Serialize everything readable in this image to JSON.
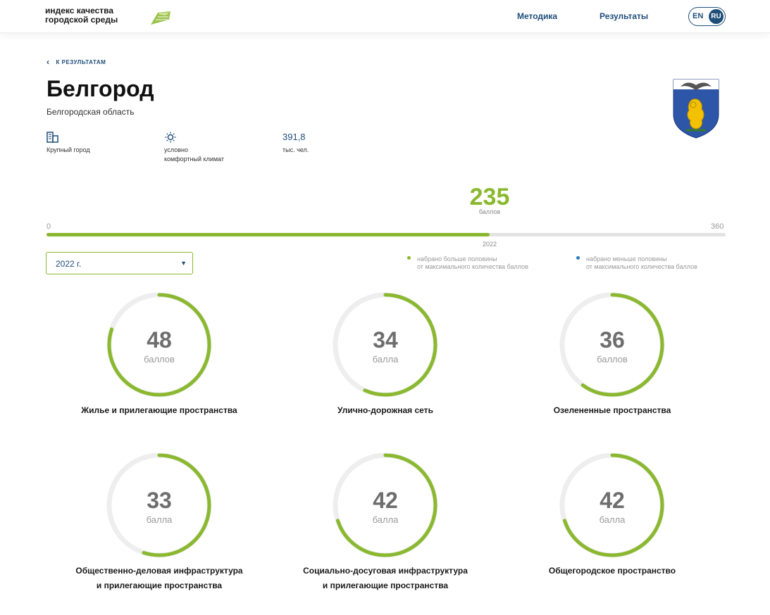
{
  "header": {
    "logo_line1": "индекс качества",
    "logo_line2": "городской среды",
    "nav": [
      "Методика",
      "Результаты"
    ],
    "lang_en": "EN",
    "lang_ru": "RU"
  },
  "back_link": "К РЕЗУЛЬТАТАМ",
  "city": {
    "name": "Белгород",
    "region": "Белгородская область",
    "type_label": "Крупный город",
    "climate_line1": "условно",
    "climate_line2": "комфортный климат",
    "population": "391,8",
    "population_unit": "тыс. чел."
  },
  "score": {
    "total": "235",
    "unit": "баллов",
    "min": "0",
    "max": "360",
    "total_value": 235,
    "max_value": 360,
    "year_marker": "2022"
  },
  "year_select": {
    "value": "2022 г."
  },
  "legend": {
    "above_line1": "набрано больше половины",
    "above_line2": "от максимального количества баллов",
    "below_line1": "набрано меньше половины",
    "below_line2": "от максимального количества баллов"
  },
  "colors": {
    "accent_green": "#8ab82e",
    "accent_blue": "#1f4e79",
    "legend_blue": "#2b7bb9"
  },
  "categories": [
    {
      "score": "48",
      "unit": "баллов",
      "title_line1": "Жилье и прилегающие пространства",
      "title_line2": "",
      "fraction": 0.8
    },
    {
      "score": "34",
      "unit": "балла",
      "title_line1": "Улично-дорожная сеть",
      "title_line2": "",
      "fraction": 0.567
    },
    {
      "score": "36",
      "unit": "баллов",
      "title_line1": "Озелененные пространства",
      "title_line2": "",
      "fraction": 0.6
    },
    {
      "score": "33",
      "unit": "балла",
      "title_line1": "Общественно-деловая инфраструктура",
      "title_line2": "и прилегающие пространства",
      "fraction": 0.55
    },
    {
      "score": "42",
      "unit": "балла",
      "title_line1": "Социально-досуговая инфраструктура",
      "title_line2": "и прилегающие пространства",
      "fraction": 0.7
    },
    {
      "score": "42",
      "unit": "балла",
      "title_line1": "Общегородское пространство",
      "title_line2": "",
      "fraction": 0.7
    }
  ]
}
